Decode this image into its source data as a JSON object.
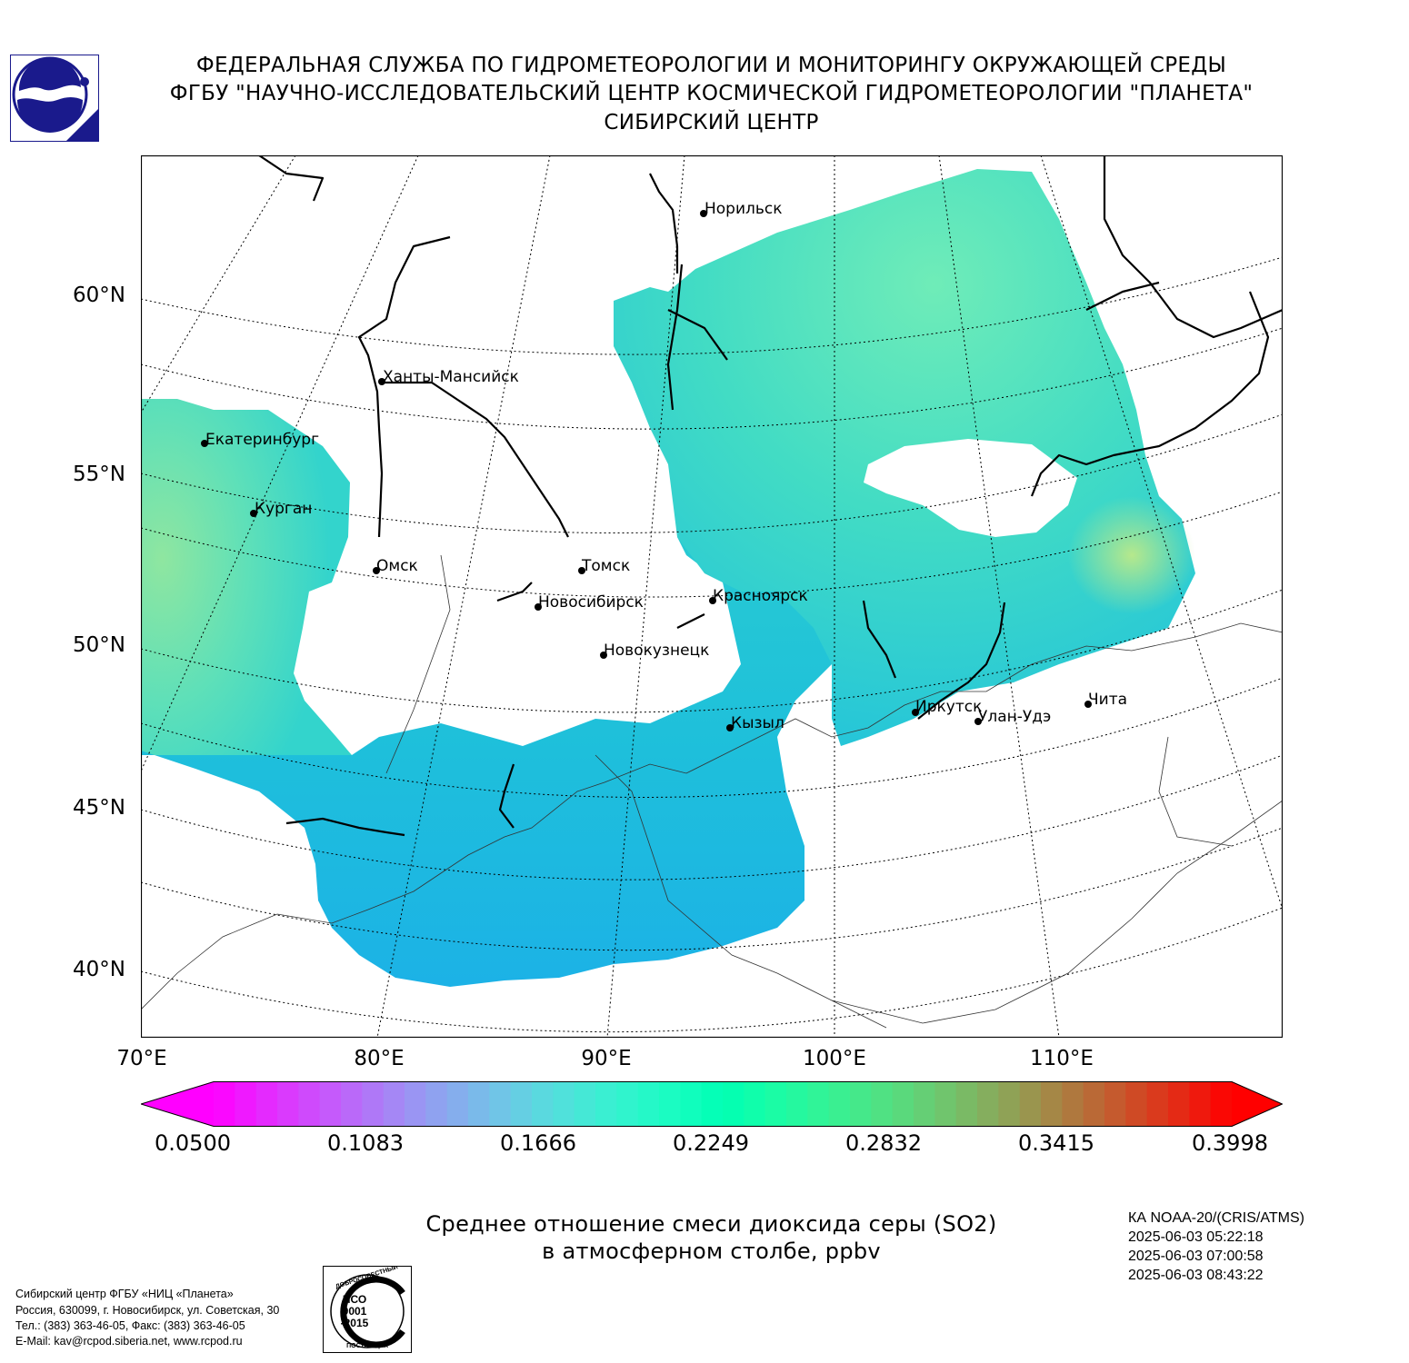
{
  "header": {
    "line1": "ФЕДЕРАЛЬНАЯ СЛУЖБА ПО ГИДРОМЕТЕОРОЛОГИИ И МОНИТОРИНГУ ОКРУЖАЮЩЕЙ СРЕДЫ",
    "line2": "ФГБУ \"НАУЧНО-ИССЛЕДОВАТЕЛЬСКИЙ ЦЕНТР КОСМИЧЕСКОЙ ГИДРОМЕТЕОРОЛОГИИ \"ПЛАНЕТА\"",
    "line3": "СИБИРСКИЙ ЦЕНТР"
  },
  "map": {
    "lat_labels": [
      "60°N",
      "55°N",
      "50°N",
      "45°N",
      "40°N"
    ],
    "lon_labels": [
      "70°E",
      "80°E",
      "90°E",
      "100°E",
      "110°E"
    ],
    "cities": [
      {
        "name": "Норильск"
      },
      {
        "name": "Ханты-Мансийск"
      },
      {
        "name": "Екатеринбург"
      },
      {
        "name": "Курган"
      },
      {
        "name": "Омск"
      },
      {
        "name": "Томск"
      },
      {
        "name": "Новосибирск"
      },
      {
        "name": "Красноярск"
      },
      {
        "name": "Новокузнецк"
      },
      {
        "name": "Кызыл"
      },
      {
        "name": "Иркутск"
      },
      {
        "name": "Улан-Удэ"
      },
      {
        "name": "Чита"
      }
    ]
  },
  "colorbar": {
    "ticks": [
      "0.0500",
      "0.1083",
      "0.1666",
      "0.2249",
      "0.2832",
      "0.3415",
      "0.3998"
    ],
    "colormap": "rainbow"
  },
  "title": {
    "line1": "Среднее отношение смеси диоксида серы (SO2)",
    "line2": "в атмосферном столбе, ppbv"
  },
  "satellite": {
    "name": "КА NOAA-20/(CRIS/ATMS)",
    "times": [
      "2025-06-03 05:22:18",
      "2025-06-03 07:00:58",
      "2025-06-03 08:43:22"
    ]
  },
  "footer": {
    "org": "Сибирский центр ФГБУ «НИЦ «Планета»",
    "address": "Россия, 630099, г. Новосибирск, ул. Советская, 30",
    "phone": "Тел.: (383) 363-46-05, Факс: (383) 363-46-05",
    "email": "E-Mail: kav@rcpod.siberia.net, www.rcpod.ru"
  },
  "iso_badge": {
    "text_top": "ДОБРОСОВЕСТНЫЙ",
    "line1": "ИСО",
    "line2": "9001",
    "line3": "-2015",
    "text_bottom": "ПОСТАВЩИК"
  },
  "colors": {
    "field_low": "#1fb4e8",
    "field_mid": "#2fd6c8",
    "field_high": "#a8e890",
    "coast": "#000000"
  }
}
